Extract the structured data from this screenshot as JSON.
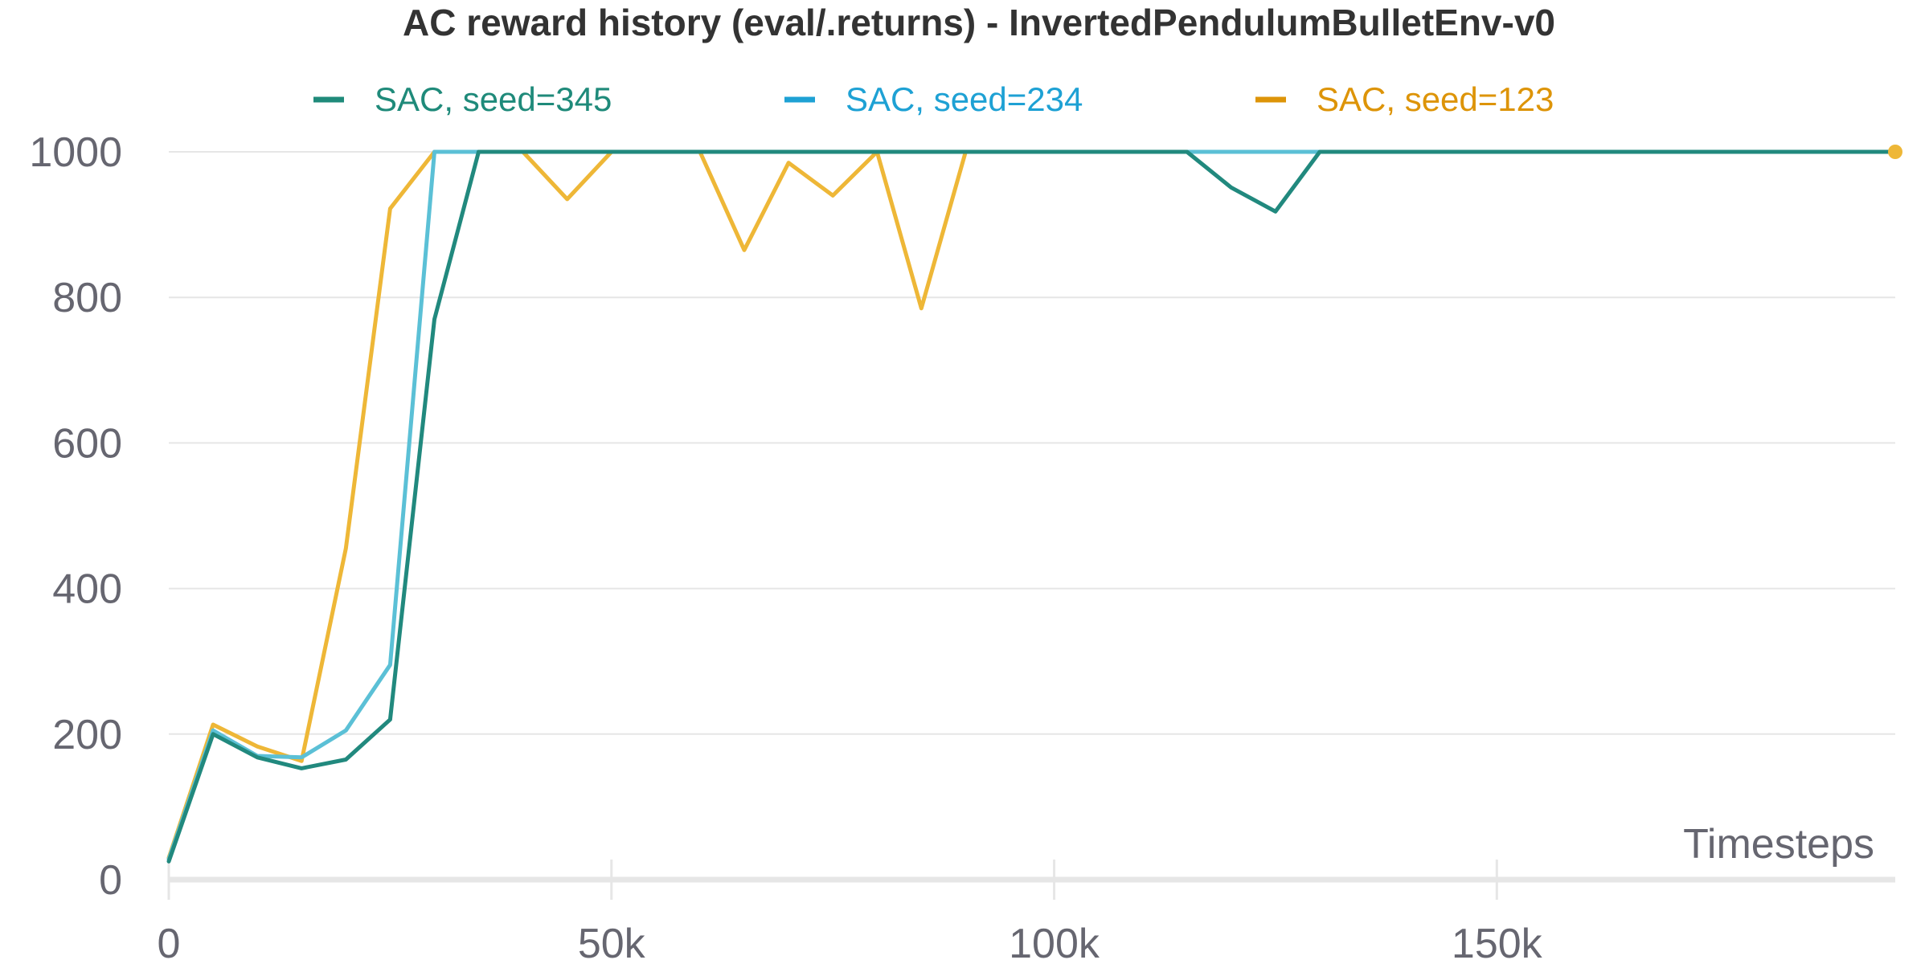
{
  "chart_data": {
    "type": "line",
    "title": "AC reward history (eval/.returns) - InvertedPendulumBulletEnv-v0",
    "xlabel": "Timesteps",
    "ylabel": "",
    "xlim": [
      0,
      195000
    ],
    "ylim": [
      0,
      1000
    ],
    "x_ticks": [
      0,
      50000,
      100000,
      150000
    ],
    "x_tick_labels": [
      "0",
      "50k",
      "100k",
      "150k"
    ],
    "y_ticks": [
      0,
      200,
      400,
      600,
      800,
      1000
    ],
    "y_tick_labels": [
      "0",
      "200",
      "400",
      "600",
      "800",
      "1000"
    ],
    "grid": "horizontal",
    "legend_position": "top",
    "series": [
      {
        "name": "SAC, seed=345",
        "color": "#21897e",
        "legend_color": "#1f8a7a",
        "points": [
          [
            0,
            25
          ],
          [
            5000,
            200
          ],
          [
            10000,
            168
          ],
          [
            15000,
            153
          ],
          [
            20000,
            165
          ],
          [
            25000,
            220
          ],
          [
            30000,
            770
          ],
          [
            35000,
            1000
          ],
          [
            40000,
            1000
          ],
          [
            45000,
            1000
          ],
          [
            50000,
            1000
          ],
          [
            55000,
            1000
          ],
          [
            60000,
            1000
          ],
          [
            65000,
            1000
          ],
          [
            70000,
            1000
          ],
          [
            75000,
            1000
          ],
          [
            80000,
            1000
          ],
          [
            85000,
            1000
          ],
          [
            90000,
            1000
          ],
          [
            95000,
            1000
          ],
          [
            100000,
            1000
          ],
          [
            105000,
            1000
          ],
          [
            110000,
            1000
          ],
          [
            115000,
            1000
          ],
          [
            120000,
            951
          ],
          [
            125000,
            918
          ],
          [
            130000,
            1000
          ],
          [
            135000,
            1000
          ],
          [
            140000,
            1000
          ],
          [
            145000,
            1000
          ],
          [
            150000,
            1000
          ],
          [
            155000,
            1000
          ],
          [
            160000,
            1000
          ],
          [
            165000,
            1000
          ],
          [
            170000,
            1000
          ],
          [
            175000,
            1000
          ],
          [
            180000,
            1000
          ],
          [
            185000,
            1000
          ],
          [
            190000,
            1000
          ],
          [
            195000,
            1000
          ]
        ]
      },
      {
        "name": "SAC, seed=234",
        "color": "#5bc0d6",
        "legend_color": "#1ea1d4",
        "points": [
          [
            0,
            28
          ],
          [
            5000,
            205
          ],
          [
            10000,
            170
          ],
          [
            15000,
            168
          ],
          [
            20000,
            205
          ],
          [
            25000,
            295
          ],
          [
            30000,
            1000
          ],
          [
            35000,
            1000
          ],
          [
            40000,
            1000
          ],
          [
            45000,
            1000
          ],
          [
            50000,
            1000
          ],
          [
            55000,
            1000
          ],
          [
            60000,
            1000
          ],
          [
            65000,
            1000
          ],
          [
            70000,
            1000
          ],
          [
            75000,
            1000
          ],
          [
            80000,
            1000
          ],
          [
            85000,
            1000
          ],
          [
            90000,
            1000
          ],
          [
            95000,
            1000
          ],
          [
            100000,
            1000
          ],
          [
            105000,
            1000
          ],
          [
            110000,
            1000
          ],
          [
            115000,
            1000
          ],
          [
            120000,
            1000
          ],
          [
            125000,
            1000
          ],
          [
            130000,
            1000
          ],
          [
            135000,
            1000
          ],
          [
            140000,
            1000
          ],
          [
            145000,
            1000
          ],
          [
            150000,
            1000
          ],
          [
            155000,
            1000
          ],
          [
            160000,
            1000
          ],
          [
            165000,
            1000
          ],
          [
            170000,
            1000
          ],
          [
            175000,
            1000
          ],
          [
            180000,
            1000
          ],
          [
            185000,
            1000
          ],
          [
            190000,
            1000
          ],
          [
            195000,
            1000
          ]
        ]
      },
      {
        "name": "SAC, seed=123",
        "color": "#eeb737",
        "legend_color": "#dd9408",
        "points": [
          [
            0,
            30
          ],
          [
            5000,
            213
          ],
          [
            10000,
            183
          ],
          [
            15000,
            163
          ],
          [
            20000,
            455
          ],
          [
            25000,
            922
          ],
          [
            30000,
            1000
          ],
          [
            35000,
            1000
          ],
          [
            40000,
            1000
          ],
          [
            45000,
            935
          ],
          [
            50000,
            1000
          ],
          [
            55000,
            1000
          ],
          [
            60000,
            1000
          ],
          [
            65000,
            865
          ],
          [
            70000,
            985
          ],
          [
            75000,
            940
          ],
          [
            80000,
            1000
          ],
          [
            85000,
            785
          ],
          [
            90000,
            1000
          ],
          [
            95000,
            1000
          ],
          [
            100000,
            1000
          ],
          [
            105000,
            1000
          ],
          [
            110000,
            1000
          ],
          [
            115000,
            1000
          ],
          [
            120000,
            1000
          ],
          [
            125000,
            1000
          ],
          [
            130000,
            1000
          ],
          [
            135000,
            1000
          ],
          [
            140000,
            1000
          ],
          [
            145000,
            1000
          ],
          [
            150000,
            1000
          ],
          [
            155000,
            1000
          ],
          [
            160000,
            1000
          ],
          [
            165000,
            1000
          ],
          [
            170000,
            1000
          ],
          [
            175000,
            1000
          ],
          [
            180000,
            1000
          ],
          [
            185000,
            1000
          ],
          [
            190000,
            1000
          ],
          [
            195000,
            1000
          ]
        ]
      }
    ]
  }
}
